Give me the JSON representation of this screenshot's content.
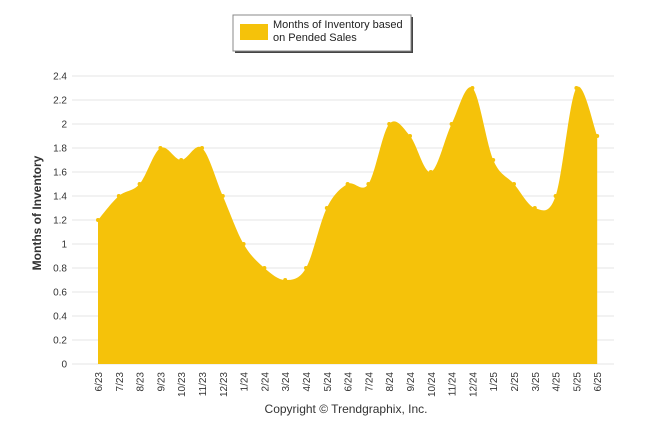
{
  "chart_data": {
    "type": "area",
    "categories": [
      "6/23",
      "7/23",
      "8/23",
      "9/23",
      "10/23",
      "11/23",
      "12/23",
      "1/24",
      "2/24",
      "3/24",
      "4/24",
      "5/24",
      "6/24",
      "7/24",
      "8/24",
      "9/24",
      "10/24",
      "11/24",
      "12/24",
      "1/25",
      "2/25",
      "3/25",
      "4/25",
      "5/25",
      "6/25"
    ],
    "series": [
      {
        "name": "Months of Inventory based on Pended Sales",
        "values": [
          1.2,
          1.4,
          1.5,
          1.8,
          1.7,
          1.8,
          1.4,
          1.0,
          0.8,
          0.7,
          0.8,
          1.3,
          1.5,
          1.5,
          2.0,
          1.9,
          1.6,
          2.0,
          2.3,
          1.7,
          1.5,
          1.3,
          1.4,
          2.3,
          1.9
        ]
      }
    ],
    "ylabel": "Months of Inventory",
    "ylim": [
      0,
      2.4
    ],
    "yticks": [
      "0",
      "0.2",
      "0.4",
      "0.6",
      "0.8",
      "1",
      "1.2",
      "1.4",
      "1.6",
      "1.8",
      "2",
      "2.2",
      "2.4"
    ],
    "grid": true,
    "legend_position": "top-center",
    "color": "#F5C20A"
  },
  "legend": {
    "lines": [
      "Months of Inventory based",
      "on Pended Sales"
    ]
  },
  "copyright": "Copyright © Trendgraphix, Inc."
}
